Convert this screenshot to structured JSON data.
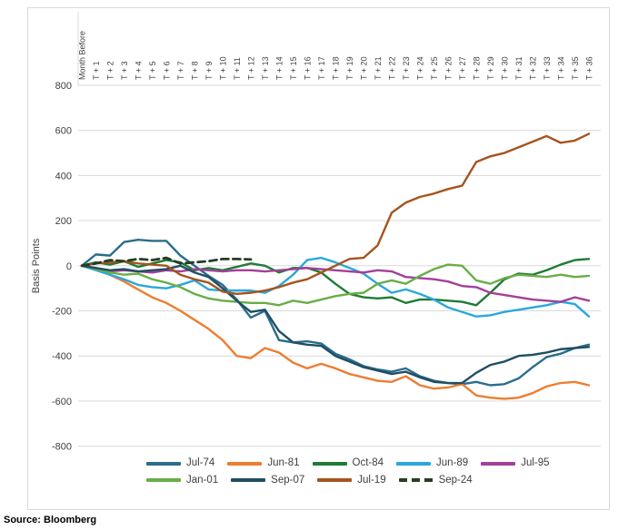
{
  "chart_data": {
    "type": "line",
    "title": "",
    "xlabel": "",
    "ylabel": "Basis Points",
    "ylim": [
      -800,
      800
    ],
    "y_ticks": [
      800,
      600,
      400,
      200,
      0,
      -200,
      -400,
      -600,
      -800
    ],
    "grid": true,
    "legend_position": "bottom",
    "source": "Source: Bloomberg",
    "x_labels": [
      "Month Before",
      "T + 1",
      "T + 2",
      "T + 3",
      "T + 4",
      "T + 5",
      "T + 6",
      "T + 7",
      "T + 8",
      "T + 9",
      "T + 10",
      "T + 11",
      "T + 12",
      "T + 13",
      "T + 14",
      "T + 15",
      "T + 16",
      "T + 17",
      "T + 18",
      "T + 19",
      "T + 20",
      "T + 21",
      "T + 22",
      "T + 23",
      "T + 24",
      "T + 25",
      "T + 26",
      "T + 27",
      "T + 28",
      "T + 29",
      "T + 30",
      "T + 31",
      "T + 32",
      "T + 33",
      "T + 34",
      "T + 35",
      "T + 36"
    ],
    "series": [
      {
        "name": "Jul-74",
        "color": "#2a6d8c",
        "dashed": false,
        "values": [
          0,
          50,
          45,
          105,
          115,
          110,
          110,
          45,
          0,
          -45,
          -85,
          -150,
          -230,
          -200,
          -330,
          -340,
          -335,
          -345,
          -390,
          -415,
          -445,
          -460,
          -470,
          -455,
          -490,
          -510,
          -520,
          -525,
          -515,
          -530,
          -525,
          -500,
          -450,
          -405,
          -390,
          -365,
          -350
        ]
      },
      {
        "name": "Jun-81",
        "color": "#ed7d31",
        "dashed": false,
        "values": [
          0,
          -15,
          -40,
          -70,
          -105,
          -140,
          -165,
          -200,
          -240,
          -280,
          -330,
          -400,
          -410,
          -365,
          -385,
          -430,
          -455,
          -435,
          -455,
          -480,
          -495,
          -510,
          -515,
          -490,
          -530,
          -545,
          -540,
          -525,
          -575,
          -585,
          -590,
          -585,
          -565,
          -535,
          -520,
          -515,
          -530
        ]
      },
      {
        "name": "Oct-84",
        "color": "#1e7b34",
        "dashed": false,
        "values": [
          0,
          15,
          5,
          20,
          -5,
          10,
          25,
          15,
          -20,
          -10,
          -20,
          -5,
          10,
          0,
          -30,
          -10,
          -10,
          -30,
          -80,
          -125,
          -140,
          -145,
          -140,
          -165,
          -150,
          -150,
          -155,
          -160,
          -175,
          -120,
          -60,
          -35,
          -40,
          -20,
          5,
          25,
          30
        ]
      },
      {
        "name": "Jun-89",
        "color": "#2aa7dc",
        "dashed": false,
        "values": [
          0,
          -20,
          -40,
          -60,
          -85,
          -95,
          -100,
          -85,
          -65,
          -105,
          -110,
          -110,
          -110,
          -120,
          -90,
          -40,
          25,
          35,
          15,
          -10,
          -35,
          -80,
          -120,
          -105,
          -125,
          -150,
          -185,
          -205,
          -225,
          -220,
          -205,
          -195,
          -185,
          -175,
          -160,
          -170,
          -225
        ]
      },
      {
        "name": "Jul-95",
        "color": "#a2409a",
        "dashed": false,
        "values": [
          0,
          -10,
          -25,
          -20,
          -25,
          -30,
          -20,
          -25,
          -15,
          -20,
          -25,
          -20,
          -20,
          -25,
          -20,
          -15,
          -10,
          -15,
          -20,
          -25,
          -30,
          -20,
          -25,
          -50,
          -55,
          -60,
          -70,
          -90,
          -95,
          -120,
          -130,
          -140,
          -150,
          -155,
          -160,
          -140,
          -155
        ]
      },
      {
        "name": "Jan-01",
        "color": "#68ae47",
        "dashed": false,
        "values": [
          0,
          -15,
          -30,
          -40,
          -35,
          -60,
          -75,
          -95,
          -125,
          -145,
          -155,
          -160,
          -165,
          -165,
          -175,
          -155,
          -165,
          -150,
          -135,
          -125,
          -120,
          -80,
          -65,
          -80,
          -45,
          -15,
          5,
          0,
          -65,
          -80,
          -55,
          -40,
          -45,
          -50,
          -40,
          -50,
          -45
        ]
      },
      {
        "name": "Sep-07",
        "color": "#1f4e63",
        "dashed": false,
        "values": [
          0,
          -10,
          -20,
          -15,
          -25,
          -20,
          -15,
          0,
          -30,
          -50,
          -100,
          -155,
          -205,
          -195,
          -290,
          -340,
          -350,
          -355,
          -400,
          -425,
          -450,
          -465,
          -480,
          -470,
          -495,
          -515,
          -520,
          -520,
          -475,
          -440,
          -425,
          -400,
          -395,
          -385,
          -370,
          -365,
          -360
        ]
      },
      {
        "name": "Jul-19",
        "color": "#a5541e",
        "dashed": false,
        "values": [
          0,
          10,
          15,
          20,
          10,
          5,
          0,
          -40,
          -60,
          -75,
          -115,
          -125,
          -120,
          -110,
          -95,
          -75,
          -60,
          -30,
          0,
          30,
          35,
          90,
          235,
          280,
          305,
          320,
          340,
          355,
          460,
          485,
          500,
          525,
          550,
          575,
          545,
          555,
          585
        ]
      },
      {
        "name": "Sep-24",
        "color": "#263c26",
        "dashed": true,
        "values": [
          0,
          10,
          25,
          20,
          30,
          25,
          35,
          10,
          15,
          20,
          30,
          30,
          28,
          null,
          null,
          null,
          null,
          null,
          null,
          null,
          null,
          null,
          null,
          null,
          null,
          null,
          null,
          null,
          null,
          null,
          null,
          null,
          null,
          null,
          null,
          null,
          null
        ]
      }
    ],
    "legend_rows": [
      [
        "Jul-74",
        "Jun-81",
        "Oct-84",
        "Jun-89",
        "Jul-95"
      ],
      [
        "Jan-01",
        "Sep-07",
        "Jul-19",
        "Sep-24"
      ]
    ]
  }
}
